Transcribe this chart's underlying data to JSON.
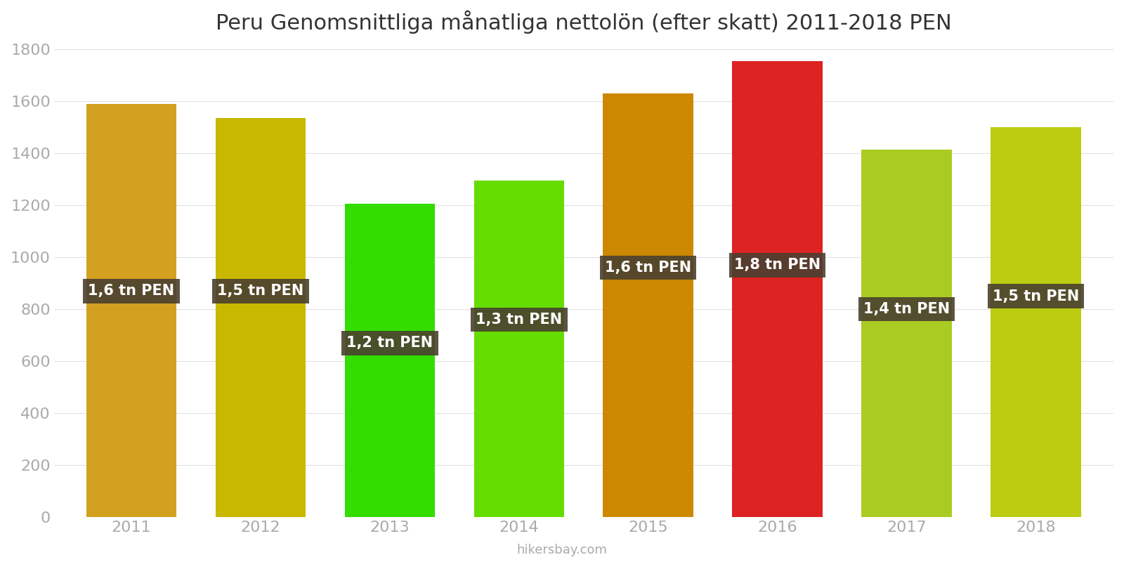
{
  "title": "Peru Genomsnittliga månatliga nettolön (efter skatt) 2011-2018 PEN",
  "years": [
    2011,
    2012,
    2013,
    2014,
    2015,
    2016,
    2017,
    2018
  ],
  "values": [
    1590,
    1535,
    1205,
    1295,
    1630,
    1755,
    1415,
    1500
  ],
  "labels": [
    "1,6 tn PEN",
    "1,5 tn PEN",
    "1,2 tn PEN",
    "1,3 tn PEN",
    "1,6 tn PEN",
    "1,8 tn PEN",
    "1,4 tn PEN",
    "1,5 tn PEN"
  ],
  "label_y_offsets": [
    870,
    870,
    670,
    760,
    960,
    970,
    800,
    850
  ],
  "colors": [
    "#D4A020",
    "#C8B800",
    "#33DD00",
    "#66DD00",
    "#CC8800",
    "#DD2222",
    "#AACC22",
    "#BBCC11"
  ],
  "ylim": [
    0,
    1800
  ],
  "yticks": [
    0,
    200,
    400,
    600,
    800,
    1000,
    1200,
    1400,
    1600,
    1800
  ],
  "label_box_color": "#4a4030",
  "label_text_color": "#ffffff",
  "footer_text": "hikersbay.com",
  "background_color": "#ffffff",
  "title_fontsize": 22,
  "tick_fontsize": 16,
  "label_fontsize": 15,
  "bar_width": 0.7
}
